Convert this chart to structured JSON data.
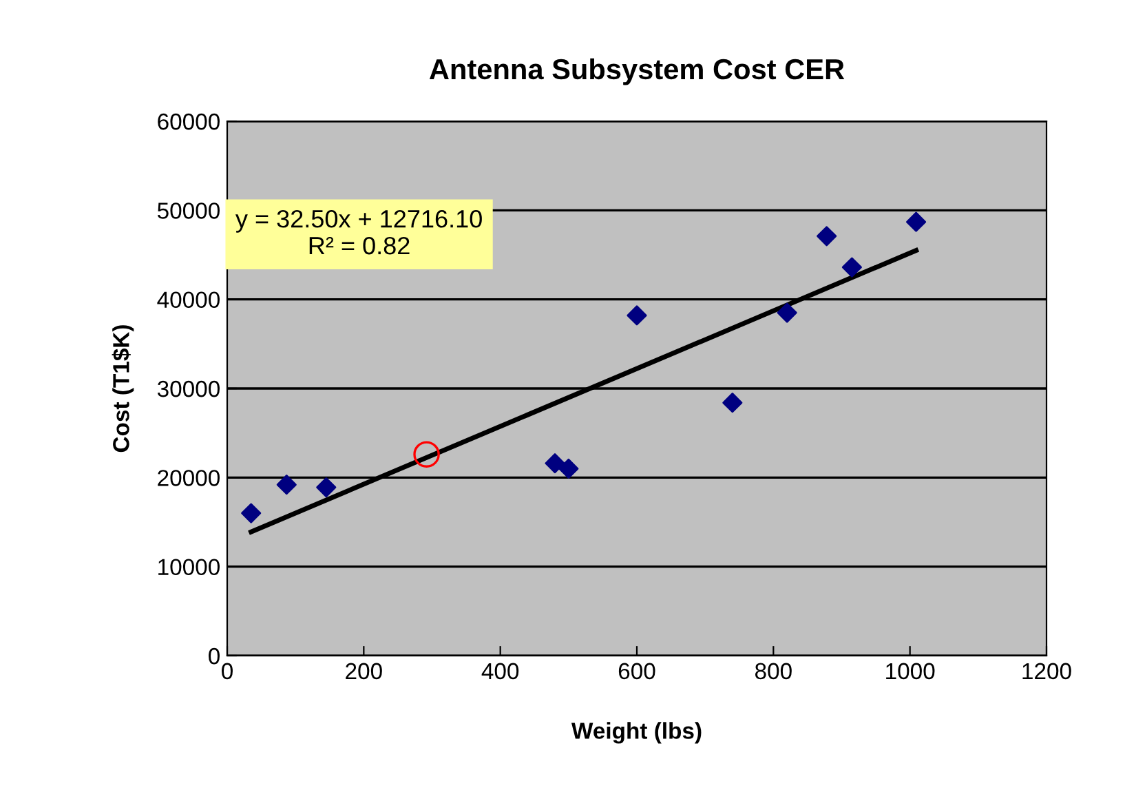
{
  "chart_data": {
    "type": "scatter",
    "title": "Antenna Subsystem Cost CER",
    "xlabel": "Weight (lbs)",
    "ylabel": "Cost (T1$K)",
    "xlim": [
      0,
      1200
    ],
    "xticks": [
      0,
      200,
      400,
      600,
      800,
      1000,
      1200
    ],
    "ylim": [
      0,
      60000
    ],
    "yticks": [
      0,
      10000,
      20000,
      30000,
      40000,
      50000,
      60000
    ],
    "grid": "y",
    "legend": false,
    "annotations": [
      "y = 32.50x + 12716.10\nR² = 0.82"
    ],
    "series": [
      {
        "marker": "diamond",
        "color": "#000080",
        "x": [
          35,
          87,
          145,
          480,
          500,
          600,
          740,
          820,
          878,
          915,
          1009
        ],
        "values": [
          16000,
          19200,
          18900,
          21600,
          21000,
          38200,
          28400,
          38500,
          47100,
          43600,
          48700
        ]
      },
      {
        "type": "scatter",
        "marker": "circle",
        "color": "#ff0000",
        "x": [
          292
        ],
        "values": [
          22600
        ]
      },
      {
        "type": "line",
        "marker": "none",
        "color": "#000000",
        "x": [
          35,
          1009
        ],
        "values": [
          13900,
          45500
        ]
      }
    ]
  }
}
